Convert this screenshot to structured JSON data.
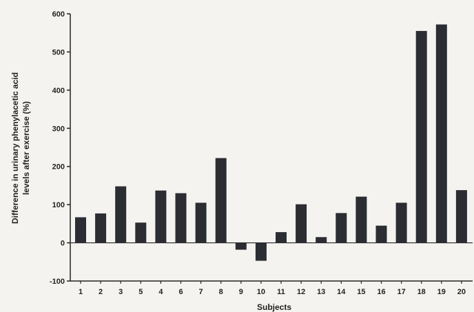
{
  "chart_data": {
    "type": "bar",
    "title": "",
    "xlabel": "Subjects",
    "ylabel_line1": "Difference in urinary phenylacetic acid",
    "ylabel_line2": "levels after exercise (%)",
    "ylim": [
      -100,
      600
    ],
    "yticks": [
      600,
      500,
      400,
      300,
      200,
      100,
      0,
      -100
    ],
    "ytick_labels": [
      "600",
      "500",
      "400",
      "300",
      "200",
      "100",
      "0",
      "-100"
    ],
    "grid": false,
    "categories": [
      "1",
      "2",
      "3",
      "5",
      "4",
      "6",
      "7",
      "8",
      "9",
      "10",
      "11",
      "12",
      "13",
      "14",
      "15",
      "16",
      "17",
      "18",
      "19",
      "20"
    ],
    "values": [
      67,
      77,
      148,
      53,
      137,
      130,
      105,
      222,
      -18,
      -47,
      28,
      101,
      15,
      78,
      121,
      45,
      105,
      555,
      572,
      138
    ],
    "colors": {
      "bar": "#2b2d33",
      "axis": "#222222",
      "background": "#f4f3ef"
    }
  }
}
